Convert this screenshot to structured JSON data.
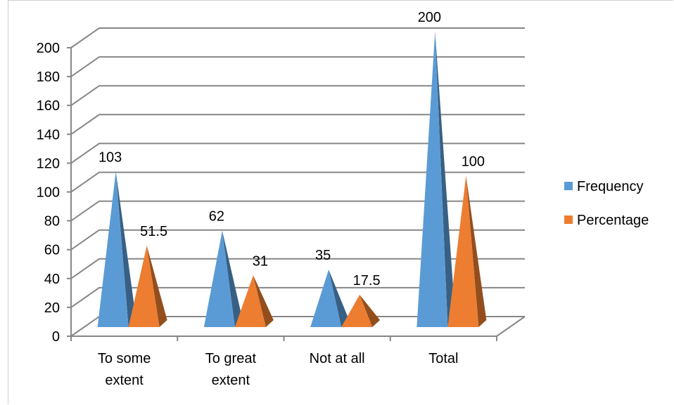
{
  "chart_data": {
    "type": "bar",
    "subtype": "3d-pyramid",
    "title": "",
    "xlabel": "",
    "ylabel": "",
    "categories": [
      [
        "To some",
        "extent"
      ],
      [
        "To great",
        "extent"
      ],
      [
        "Not at all"
      ],
      [
        "Total"
      ]
    ],
    "series": [
      {
        "name": "Frequency",
        "values": [
          103,
          62,
          35,
          200
        ],
        "labels": [
          "103",
          "62",
          "35",
          "200"
        ],
        "color": "#5b9bd5"
      },
      {
        "name": "Percentage",
        "values": [
          51.5,
          31,
          17.5,
          100
        ],
        "labels": [
          "51.5",
          "31",
          "17.5",
          "100"
        ],
        "color": "#ed7d31"
      }
    ],
    "yticks": [
      "0",
      "20",
      "40",
      "60",
      "80",
      "100",
      "120",
      "140",
      "160",
      "180",
      "200"
    ],
    "ylim": [
      0,
      200
    ],
    "grid": true,
    "legend_position": "right"
  }
}
